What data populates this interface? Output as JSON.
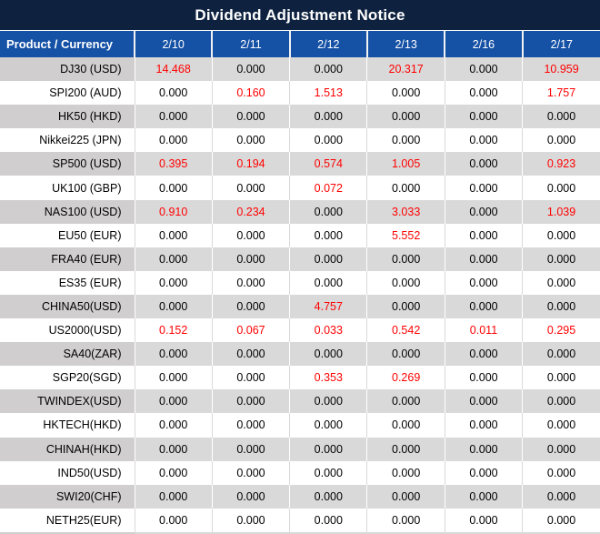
{
  "title": "Dividend Adjustment Notice",
  "colors": {
    "title_bg": "#0E2240",
    "header_bg": "#1551A5",
    "highlight_red": "#FF0000",
    "gray_row_bg": "#D9D9D9",
    "gray_row_product_bg": "#D0CECE",
    "white_row_bg": "#FFFFFF",
    "header_text": "#FFFFFF",
    "value_text": "#000000"
  },
  "table": {
    "product_header": "Product / Currency",
    "date_headers": [
      "2/10",
      "2/11",
      "2/12",
      "2/13",
      "2/16",
      "2/17"
    ],
    "rows": [
      {
        "product": "DJ30 (USD)",
        "values": [
          "14.468",
          "0.000",
          "0.000",
          "20.317",
          "0.000",
          "10.959"
        ],
        "red": [
          true,
          false,
          false,
          true,
          false,
          true
        ]
      },
      {
        "product": "SPI200 (AUD)",
        "values": [
          "0.000",
          "0.160",
          "1.513",
          "0.000",
          "0.000",
          "1.757"
        ],
        "red": [
          false,
          true,
          true,
          false,
          false,
          true
        ]
      },
      {
        "product": "HK50 (HKD)",
        "values": [
          "0.000",
          "0.000",
          "0.000",
          "0.000",
          "0.000",
          "0.000"
        ],
        "red": [
          false,
          false,
          false,
          false,
          false,
          false
        ]
      },
      {
        "product": "Nikkei225 (JPN)",
        "values": [
          "0.000",
          "0.000",
          "0.000",
          "0.000",
          "0.000",
          "0.000"
        ],
        "red": [
          false,
          false,
          false,
          false,
          false,
          false
        ]
      },
      {
        "product": "SP500 (USD)",
        "values": [
          "0.395",
          "0.194",
          "0.574",
          "1.005",
          "0.000",
          "0.923"
        ],
        "red": [
          true,
          true,
          true,
          true,
          false,
          true
        ]
      },
      {
        "product": "UK100 (GBP)",
        "values": [
          "0.000",
          "0.000",
          "0.072",
          "0.000",
          "0.000",
          "0.000"
        ],
        "red": [
          false,
          false,
          true,
          false,
          false,
          false
        ]
      },
      {
        "product": "NAS100 (USD)",
        "values": [
          "0.910",
          "0.234",
          "0.000",
          "3.033",
          "0.000",
          "1.039"
        ],
        "red": [
          true,
          true,
          false,
          true,
          false,
          true
        ]
      },
      {
        "product": "EU50 (EUR)",
        "values": [
          "0.000",
          "0.000",
          "0.000",
          "5.552",
          "0.000",
          "0.000"
        ],
        "red": [
          false,
          false,
          false,
          true,
          false,
          false
        ]
      },
      {
        "product": "FRA40 (EUR)",
        "values": [
          "0.000",
          "0.000",
          "0.000",
          "0.000",
          "0.000",
          "0.000"
        ],
        "red": [
          false,
          false,
          false,
          false,
          false,
          false
        ]
      },
      {
        "product": "ES35 (EUR)",
        "values": [
          "0.000",
          "0.000",
          "0.000",
          "0.000",
          "0.000",
          "0.000"
        ],
        "red": [
          false,
          false,
          false,
          false,
          false,
          false
        ]
      },
      {
        "product": "CHINA50(USD)",
        "values": [
          "0.000",
          "0.000",
          "4.757",
          "0.000",
          "0.000",
          "0.000"
        ],
        "red": [
          false,
          false,
          true,
          false,
          false,
          false
        ]
      },
      {
        "product": "US2000(USD)",
        "values": [
          "0.152",
          "0.067",
          "0.033",
          "0.542",
          "0.011",
          "0.295"
        ],
        "red": [
          true,
          true,
          true,
          true,
          true,
          true
        ]
      },
      {
        "product": "SA40(ZAR)",
        "values": [
          "0.000",
          "0.000",
          "0.000",
          "0.000",
          "0.000",
          "0.000"
        ],
        "red": [
          false,
          false,
          false,
          false,
          false,
          false
        ]
      },
      {
        "product": "SGP20(SGD)",
        "values": [
          "0.000",
          "0.000",
          "0.353",
          "0.269",
          "0.000",
          "0.000"
        ],
        "red": [
          false,
          false,
          true,
          true,
          false,
          false
        ]
      },
      {
        "product": "TWINDEX(USD)",
        "values": [
          "0.000",
          "0.000",
          "0.000",
          "0.000",
          "0.000",
          "0.000"
        ],
        "red": [
          false,
          false,
          false,
          false,
          false,
          false
        ]
      },
      {
        "product": "HKTECH(HKD)",
        "values": [
          "0.000",
          "0.000",
          "0.000",
          "0.000",
          "0.000",
          "0.000"
        ],
        "red": [
          false,
          false,
          false,
          false,
          false,
          false
        ]
      },
      {
        "product": "CHINAH(HKD)",
        "values": [
          "0.000",
          "0.000",
          "0.000",
          "0.000",
          "0.000",
          "0.000"
        ],
        "red": [
          false,
          false,
          false,
          false,
          false,
          false
        ]
      },
      {
        "product": "IND50(USD)",
        "values": [
          "0.000",
          "0.000",
          "0.000",
          "0.000",
          "0.000",
          "0.000"
        ],
        "red": [
          false,
          false,
          false,
          false,
          false,
          false
        ]
      },
      {
        "product": "SWI20(CHF)",
        "values": [
          "0.000",
          "0.000",
          "0.000",
          "0.000",
          "0.000",
          "0.000"
        ],
        "red": [
          false,
          false,
          false,
          false,
          false,
          false
        ]
      },
      {
        "product": "NETH25(EUR)",
        "values": [
          "0.000",
          "0.000",
          "0.000",
          "0.000",
          "0.000",
          "0.000"
        ],
        "red": [
          false,
          false,
          false,
          false,
          false,
          false
        ]
      }
    ]
  }
}
